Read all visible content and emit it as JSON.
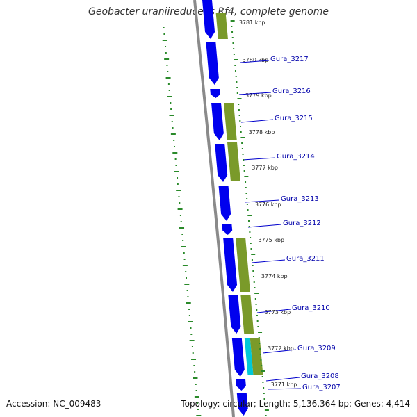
{
  "title": "Geobacter uraniireducens Rf4, complete genome",
  "accession": "Accession: NC_009483",
  "topology": "Topology: circular; Length: 5,136,364 bp; Genes: 4,414",
  "colors": {
    "backbone": "#8a8a8a",
    "cds_strand": "#0000ee",
    "cog_olive": "#7a9a2a",
    "cog_cyan": "#00c8d8",
    "gc_ticks": "#2a8a2a",
    "label_lines": "#0000cc"
  },
  "kbp_ticks": [
    "3781 kbp",
    "3780 kbp",
    "3779 kbp",
    "3778 kbp",
    "3777 kbp",
    "3776 kbp",
    "3775 kbp",
    "3774 kbp",
    "3773 kbp",
    "3772 kbp",
    "3771 kbp"
  ],
  "genes": [
    "Gura_3217",
    "Gura_3216",
    "Gura_3215",
    "Gura_3214",
    "Gura_3213",
    "Gura_3212",
    "Gura_3211",
    "Gura_3210",
    "Gura_3209",
    "Gura_3208",
    "Gura_3207"
  ]
}
